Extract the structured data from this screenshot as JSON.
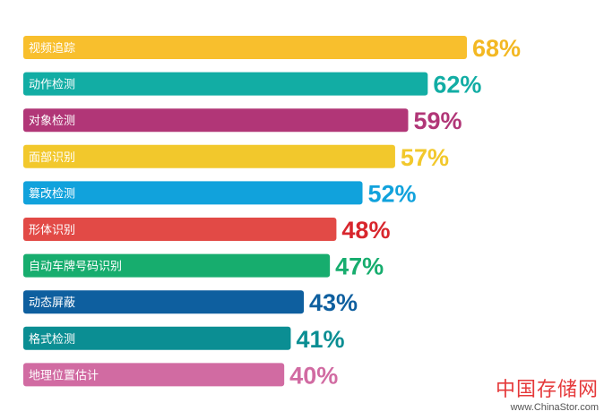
{
  "chart_data": {
    "type": "bar",
    "orientation": "horizontal",
    "categories": [
      "视频追踪",
      "动作检测",
      "对象检测",
      "面部识别",
      "篡改检测",
      "形体识别",
      "自动车牌号码识别",
      "动态屏蔽",
      "格式检测",
      "地理位置估计"
    ],
    "values": [
      68,
      62,
      59,
      57,
      52,
      48,
      47,
      43,
      41,
      40
    ],
    "value_labels": [
      "68%",
      "62%",
      "59%",
      "57%",
      "52%",
      "48%",
      "47%",
      "43%",
      "41%",
      "40%"
    ],
    "bar_colors": [
      "#f8bf2d",
      "#12ada4",
      "#b13677",
      "#f2c82c",
      "#11a2dc",
      "#e24a46",
      "#17ad6e",
      "#0e5f9f",
      "#0b8e93",
      "#d16ba2"
    ],
    "label_colors": [
      "#f3b823",
      "#12ada4",
      "#b13677",
      "#f2c82c",
      "#11a2dc",
      "#d8262d",
      "#17ad6e",
      "#0e5f9f",
      "#0b8e93",
      "#d16ba2"
    ],
    "title": "",
    "xlabel": "",
    "ylabel": "",
    "xlim": [
      0,
      68
    ],
    "grid": false,
    "legend": "none"
  },
  "watermark": {
    "logo_text": "中国存储网",
    "url_text": "www.ChinaStor.com"
  }
}
